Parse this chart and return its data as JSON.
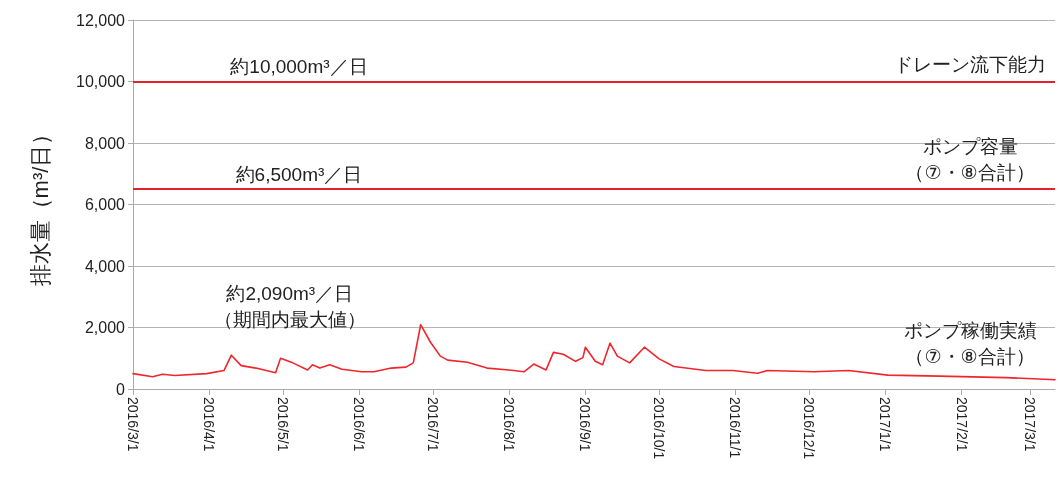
{
  "chart_data": {
    "type": "line",
    "ylabel": "排水量（m³/日）",
    "annotations": [
      "約10,000m³／日",
      "約6,500m³／日",
      "約2,090m³／日（期間内最大値）"
    ],
    "xlim": [
      "2016-03-01",
      "2017-03-11"
    ],
    "xticks": [
      {
        "value": "2016-03-01",
        "label": "2016/3/1"
      },
      {
        "value": "2016-04-01",
        "label": "2016/4/1"
      },
      {
        "value": "2016-05-01",
        "label": "2016/5/1"
      },
      {
        "value": "2016-06-01",
        "label": "2016/6/1"
      },
      {
        "value": "2016-07-01",
        "label": "2016/7/1"
      },
      {
        "value": "2016-08-01",
        "label": "2016/8/1"
      },
      {
        "value": "2016-09-01",
        "label": "2016/9/1"
      },
      {
        "value": "2016-10-01",
        "label": "2016/10/1"
      },
      {
        "value": "2016-11-01",
        "label": "2016/11/1"
      },
      {
        "value": "2016-12-01",
        "label": "2016/12/1"
      },
      {
        "value": "2017-01-01",
        "label": "2017/1/1"
      },
      {
        "value": "2017-02-01",
        "label": "2017/2/1"
      },
      {
        "value": "2017-03-01",
        "label": "2017/3/1"
      }
    ],
    "ylim": [
      0,
      12000
    ],
    "yticks": [
      0,
      {
        "value": 2000,
        "label": "2,000"
      },
      {
        "value": 4000,
        "label": "4,000"
      },
      {
        "value": 6000,
        "label": "6,000"
      },
      {
        "value": 8000,
        "label": "8,000"
      },
      {
        "value": 10000,
        "label": "10,000"
      },
      {
        "value": 12000,
        "label": "12,000"
      }
    ],
    "grid": "y",
    "line_style": "solid",
    "ref_lines": [
      {
        "axis": "y",
        "value": 10000,
        "label": "ドレーン流下能力",
        "color": "#e52129"
      },
      {
        "axis": "y",
        "value": 6500,
        "label": "ポンプ容量（⑦・⑧合計）",
        "color": "#e52129"
      }
    ],
    "series": [
      {
        "name": "ポンプ稼働実績（⑦・⑧合計）",
        "color": "#f0262c",
        "x": [
          "2016-03-01",
          "2016-03-09",
          "2016-03-13",
          "2016-03-18",
          "2016-03-31",
          "2016-04-07",
          "2016-04-10",
          "2016-04-14",
          "2016-04-20",
          "2016-04-28",
          "2016-04-30",
          "2016-05-05",
          "2016-05-11",
          "2016-05-13",
          "2016-05-16",
          "2016-05-20",
          "2016-05-25",
          "2016-06-02",
          "2016-06-07",
          "2016-06-14",
          "2016-06-20",
          "2016-06-23",
          "2016-06-26",
          "2016-06-30",
          "2016-07-04",
          "2016-07-07",
          "2016-07-15",
          "2016-07-23",
          "2016-08-01",
          "2016-08-07",
          "2016-08-11",
          "2016-08-16",
          "2016-08-19",
          "2016-08-23",
          "2016-08-28",
          "2016-08-31",
          "2016-09-01",
          "2016-09-05",
          "2016-09-08",
          "2016-09-11",
          "2016-09-14",
          "2016-09-19",
          "2016-09-25",
          "2016-10-01",
          "2016-10-07",
          "2016-10-20",
          "2016-10-31",
          "2016-11-10",
          "2016-11-14",
          "2016-12-03",
          "2016-12-17",
          "2017-01-02",
          "2017-01-23",
          "2017-02-19",
          "2017-03-11"
        ],
        "values": [
          500,
          400,
          480,
          440,
          500,
          600,
          1100,
          760,
          680,
          530,
          1000,
          850,
          620,
          790,
          680,
          790,
          640,
          560,
          560,
          680,
          710,
          850,
          2090,
          1520,
          1070,
          940,
          870,
          680,
          620,
          560,
          810,
          620,
          1190,
          1130,
          900,
          1020,
          1360,
          900,
          790,
          1490,
          1070,
          850,
          1360,
          980,
          730,
          600,
          600,
          510,
          600,
          560,
          600,
          450,
          420,
          370,
          300
        ]
      }
    ]
  }
}
